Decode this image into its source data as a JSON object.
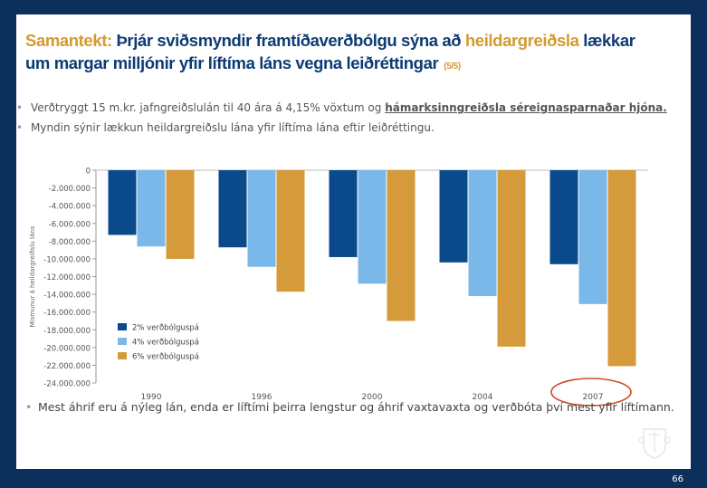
{
  "title": {
    "part1": "Samantekt:",
    "part2": " Þrjár sviðsmyndir framtíðaverðbólgu sýna að ",
    "part3": "heildargreiðsla",
    "part4": " lækkar um margar milljónir yfir líftíma láns vegna leiðréttingar",
    "page_indicator": "(5/5)"
  },
  "bullets": {
    "b1_text": "Verðtryggt 15 m.kr. jafngreiðslulán til 40 ára á 4,15% vöxtum og ",
    "b1_bold": "hámarksinngreiðsla séreignasparnaðar hjóna.",
    "b2_text": "Myndin sýnir lækkun heildargreiðslu lána yfir líftíma lána eftir leiðréttingu."
  },
  "bottom_bullet": "Mest áhrif eru á nýleg lán, enda er líftími þeirra lengstur og áhrif vaxtavaxta og verðbóta því mest yfir líftímann.",
  "page_number": "66",
  "colors": {
    "series1": "#0a4a8a",
    "series2": "#7ab8ea",
    "series3": "#d59a3a",
    "title_blue": "#0d3b73",
    "title_accent": "#d59a2f",
    "frame": "#0d2f5c",
    "circle": "#d04a2a"
  },
  "chart_data": {
    "type": "bar",
    "categories": [
      "1990",
      "1996",
      "2000",
      "2004",
      "2007"
    ],
    "series": [
      {
        "name": "2% verðbólguspá",
        "values": [
          -7300000,
          -8700000,
          -9800000,
          -10400000,
          -10600000
        ]
      },
      {
        "name": "4% verðbólguspá",
        "values": [
          -8600000,
          -10900000,
          -12800000,
          -14200000,
          -15100000
        ]
      },
      {
        "name": "6% verðbólguspá",
        "values": [
          -10000000,
          -13700000,
          -17000000,
          -19900000,
          -22100000
        ]
      }
    ],
    "ylabel": "Mismunur á heildargreiðslu láns",
    "ylim": [
      -24000000,
      0
    ],
    "yticks": [
      0,
      -2000000,
      -4000000,
      -6000000,
      -8000000,
      -10000000,
      -12000000,
      -14000000,
      -16000000,
      -18000000,
      -20000000,
      -22000000,
      -24000000
    ],
    "ytick_labels": [
      "0",
      "-2.000.000",
      "-4.000.000",
      "-6.000.000",
      "-8.000.000",
      "-10.000.000",
      "-12.000.000",
      "-14.000.000",
      "-16.000.000",
      "-18.000.000",
      "-20.000.000",
      "-22.000.000",
      "-24.000.000"
    ],
    "legend_position": "bottom-left",
    "highlighted_category": "2007"
  }
}
